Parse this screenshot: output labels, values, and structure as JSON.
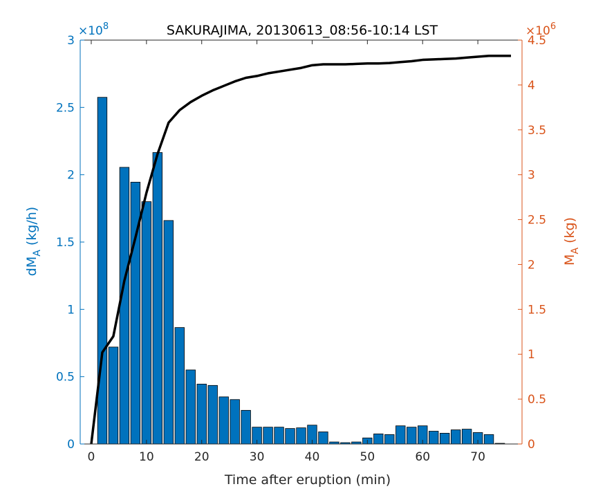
{
  "chart_data": {
    "type": "bar",
    "title": "SAKURAJIMA, 20130613_08:56-10:14 LST",
    "xlabel": "Time after eruption (min)",
    "xlim": [
      -2,
      78
    ],
    "xticks": [
      0,
      10,
      20,
      30,
      40,
      50,
      60,
      70
    ],
    "xtick_labels": [
      "0",
      "10",
      "20",
      "30",
      "40",
      "50",
      "60",
      "70"
    ],
    "left_axis": {
      "label_main": "dM",
      "label_sub": "A",
      "label_rest": " (kg/h)",
      "exponent_label_base": "×10",
      "exponent_label_power": "8",
      "exponent": 8,
      "ylim": [
        0,
        3
      ],
      "ticks": [
        0,
        0.5,
        1,
        1.5,
        2,
        2.5,
        3
      ],
      "tick_labels": [
        "0",
        "0.5",
        "1",
        "1.5",
        "2",
        "2.5",
        "3"
      ],
      "color": "#0072BD"
    },
    "right_axis": {
      "label_main": "M",
      "label_sub": "A",
      "label_rest": " (kg)",
      "exponent_label_base": "×10",
      "exponent_label_power": "6",
      "exponent": 6,
      "ylim": [
        0,
        4.5
      ],
      "ticks": [
        0,
        0.5,
        1,
        1.5,
        2,
        2.5,
        3,
        3.5,
        4,
        4.5
      ],
      "tick_labels": [
        "0",
        "0.5",
        "1",
        "1.5",
        "2",
        "2.5",
        "3",
        "3.5",
        "4",
        "4.5"
      ],
      "color": "#D95319"
    },
    "bar_width": 1.7,
    "bars": {
      "axis": "left",
      "color": "#0072BD",
      "x": [
        2,
        4,
        6,
        8,
        10,
        12,
        14,
        16,
        18,
        20,
        22,
        24,
        26,
        28,
        30,
        32,
        34,
        36,
        38,
        40,
        42,
        44,
        46,
        48,
        50,
        52,
        54,
        56,
        58,
        60,
        62,
        64,
        66,
        68,
        70,
        72,
        74
      ],
      "values": [
        2.575,
        0.72,
        2.055,
        1.945,
        1.8,
        2.165,
        1.66,
        0.865,
        0.55,
        0.445,
        0.435,
        0.35,
        0.33,
        0.25,
        0.125,
        0.125,
        0.125,
        0.115,
        0.12,
        0.14,
        0.09,
        0.015,
        0.01,
        0.015,
        0.045,
        0.075,
        0.07,
        0.135,
        0.125,
        0.135,
        0.095,
        0.08,
        0.105,
        0.11,
        0.085,
        0.07,
        0.005
      ]
    },
    "line": {
      "axis": "right",
      "color": "#000000",
      "x": [
        0,
        2,
        4,
        6,
        8,
        10,
        12,
        14,
        16,
        18,
        20,
        22,
        24,
        26,
        28,
        30,
        32,
        34,
        36,
        38,
        40,
        42,
        44,
        46,
        48,
        50,
        52,
        54,
        56,
        58,
        60,
        62,
        64,
        66,
        68,
        70,
        72,
        74,
        76
      ],
      "y": [
        0,
        1.02,
        1.2,
        1.82,
        2.3,
        2.8,
        3.23,
        3.58,
        3.72,
        3.81,
        3.88,
        3.94,
        3.99,
        4.04,
        4.08,
        4.1,
        4.13,
        4.15,
        4.17,
        4.19,
        4.22,
        4.23,
        4.23,
        4.23,
        4.235,
        4.24,
        4.24,
        4.245,
        4.255,
        4.265,
        4.28,
        4.285,
        4.29,
        4.295,
        4.305,
        4.315,
        4.325,
        4.325,
        4.325
      ]
    }
  }
}
